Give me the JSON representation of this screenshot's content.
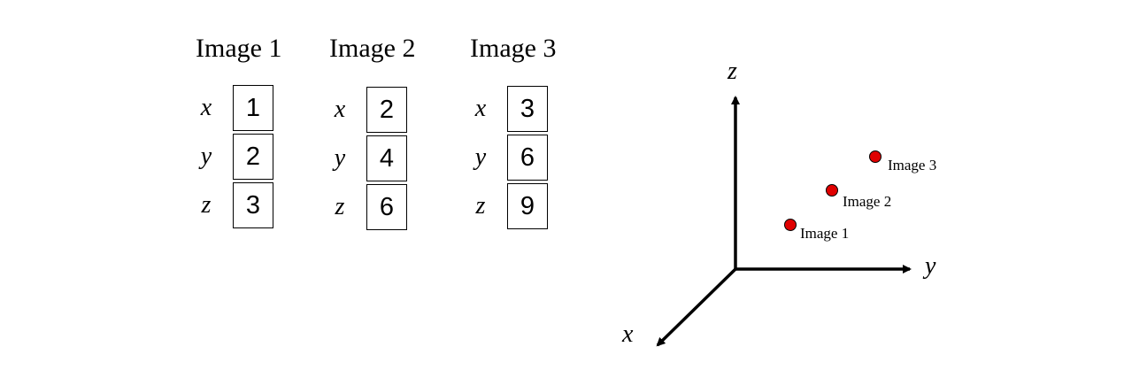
{
  "vectors": [
    {
      "title": "Image 1",
      "rows": [
        {
          "label": "x",
          "value": "1"
        },
        {
          "label": "y",
          "value": "2"
        },
        {
          "label": "z",
          "value": "3"
        }
      ]
    },
    {
      "title": "Image 2",
      "rows": [
        {
          "label": "x",
          "value": "2"
        },
        {
          "label": "y",
          "value": "4"
        },
        {
          "label": "z",
          "value": "6"
        }
      ]
    },
    {
      "title": "Image 3",
      "rows": [
        {
          "label": "x",
          "value": "3"
        },
        {
          "label": "y",
          "value": "6"
        },
        {
          "label": "z",
          "value": "9"
        }
      ]
    }
  ],
  "plot": {
    "axes": {
      "x": "x",
      "y": "y",
      "z": "z"
    },
    "point_color": "#e00000",
    "points": [
      {
        "label": "Image 1"
      },
      {
        "label": "Image 2"
      },
      {
        "label": "Image 3"
      }
    ]
  }
}
